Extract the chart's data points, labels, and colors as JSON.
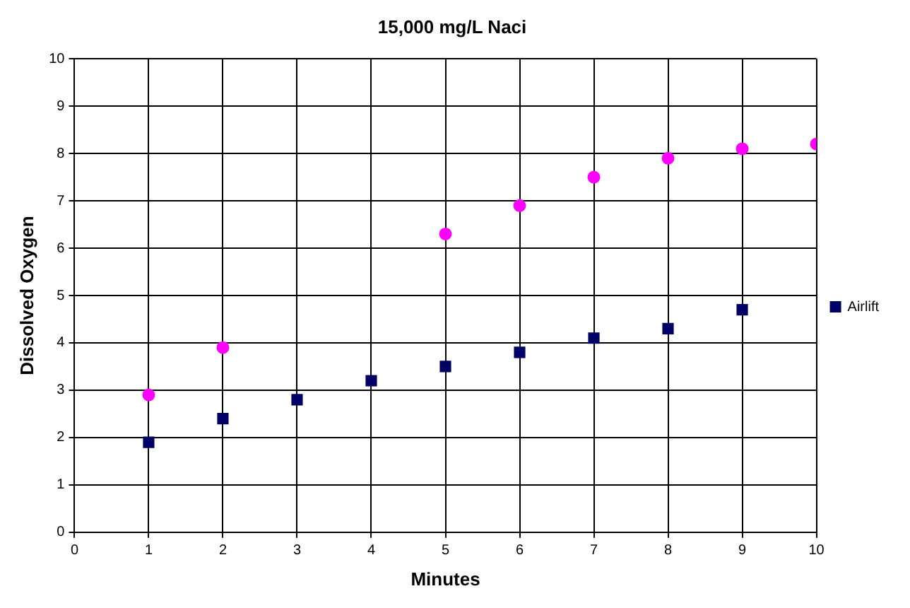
{
  "chart_data": {
    "type": "scatter",
    "title": "15,000 mg/L Naci",
    "xlabel": "Minutes",
    "ylabel": "Dissolved Oxygen",
    "x": [
      1,
      2,
      3,
      4,
      5,
      6,
      7,
      8,
      9,
      10
    ],
    "series": [
      {
        "color": "#ff00ff",
        "marker": "circle",
        "values": [
          2.9,
          3.9,
          null,
          null,
          6.3,
          6.9,
          7.5,
          7.9,
          8.1,
          8.2
        ]
      },
      {
        "name": "Airlift",
        "color": "#000066",
        "marker": "square",
        "values": [
          1.9,
          2.4,
          2.8,
          3.2,
          3.5,
          3.8,
          4.1,
          4.3,
          4.7,
          null
        ]
      }
    ],
    "xlim": [
      0,
      10
    ],
    "xticks": [
      0,
      1,
      2,
      3,
      4,
      5,
      6,
      7,
      8,
      9,
      10
    ],
    "ylim": [
      0,
      10
    ],
    "yticks": [
      0,
      1,
      2,
      3,
      4,
      5,
      6,
      7,
      8,
      9,
      10
    ],
    "grid": true,
    "legend": "right"
  }
}
